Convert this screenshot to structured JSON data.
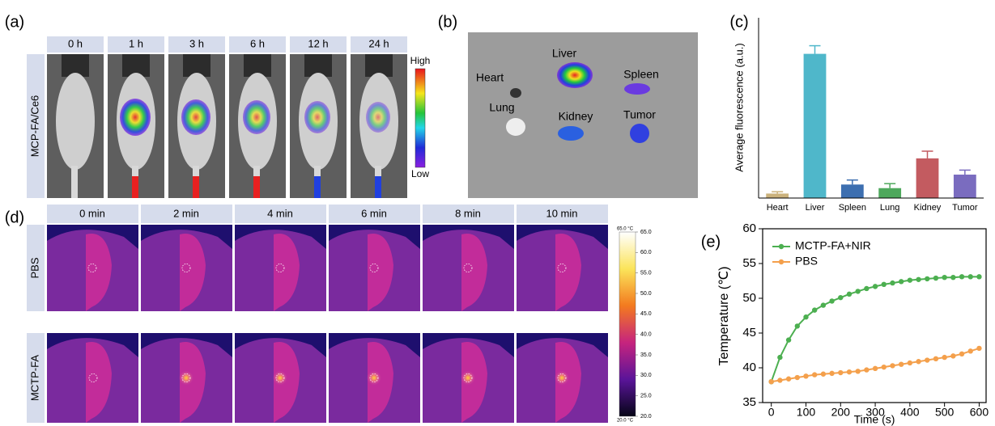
{
  "panel_labels": [
    "(a)",
    "(b)",
    "(c)",
    "(d)",
    "(e)"
  ],
  "panel_a": {
    "time_points": [
      "0 h",
      "1 h",
      "3 h",
      "6 h",
      "12 h",
      "24 h"
    ],
    "row_label": "MCP-FA/Ce6",
    "scale_high": "High",
    "scale_low": "Low"
  },
  "panel_b": {
    "organ_labels": [
      "Heart",
      "Liver",
      "Spleen",
      "Lung",
      "Kidney",
      "Tumor"
    ]
  },
  "panel_d": {
    "time_points": [
      "0 min",
      "2 min",
      "4 min",
      "6 min",
      "8 min",
      "10 min"
    ],
    "row_labels": [
      "PBS",
      "MCTP-FA"
    ],
    "scale_max": "65.0 °C",
    "scale_min": "20.0 °C",
    "scale_ticks": [
      "65.0",
      "60.0",
      "55.0",
      "50.0",
      "45.0",
      "40.0",
      "35.0",
      "30.0",
      "25.0",
      "20.0"
    ]
  },
  "chart_data": [
    {
      "type": "bar",
      "ylabel": "Average fluorescence (a.u.)",
      "categories": [
        "Heart",
        "Liver",
        "Spleen",
        "Lung",
        "Kidney",
        "Tumor"
      ],
      "values": [
        2.5,
        80,
        7.5,
        5.5,
        22,
        13
      ],
      "errors": [
        1,
        4.5,
        2.5,
        2.5,
        4,
        2.5
      ],
      "colors": [
        "#cbb27c",
        "#4fb7ca",
        "#3d6fb0",
        "#4ea85c",
        "#c35b60",
        "#7a6cbf"
      ],
      "ylim": [
        0,
        100
      ]
    },
    {
      "type": "line",
      "xlabel": "Time (s)",
      "ylabel": "Temperature (℃)",
      "x": [
        0,
        25,
        50,
        75,
        100,
        125,
        150,
        175,
        200,
        225,
        250,
        275,
        300,
        325,
        350,
        375,
        400,
        425,
        450,
        475,
        500,
        525,
        550,
        575,
        600
      ],
      "series": [
        {
          "name": "MCTP-FA+NIR",
          "color": "#4caf50",
          "values": [
            38,
            41.5,
            44,
            46,
            47.3,
            48.3,
            49,
            49.6,
            50.1,
            50.6,
            51,
            51.4,
            51.7,
            52,
            52.2,
            52.4,
            52.6,
            52.7,
            52.8,
            52.9,
            53,
            53,
            53.1,
            53.1,
            53.1
          ]
        },
        {
          "name": "PBS",
          "color": "#f4a04c",
          "values": [
            38,
            38.2,
            38.4,
            38.6,
            38.8,
            39,
            39.1,
            39.2,
            39.3,
            39.4,
            39.5,
            39.7,
            39.9,
            40.1,
            40.3,
            40.5,
            40.7,
            40.9,
            41.1,
            41.3,
            41.5,
            41.7,
            42,
            42.4,
            42.8
          ]
        }
      ],
      "xlim": [
        -25,
        620
      ],
      "ylim": [
        35,
        60
      ],
      "xticks": [
        0,
        100,
        200,
        300,
        400,
        500,
        600
      ],
      "yticks": [
        35,
        40,
        45,
        50,
        55,
        60
      ],
      "legend": "upper left"
    }
  ]
}
